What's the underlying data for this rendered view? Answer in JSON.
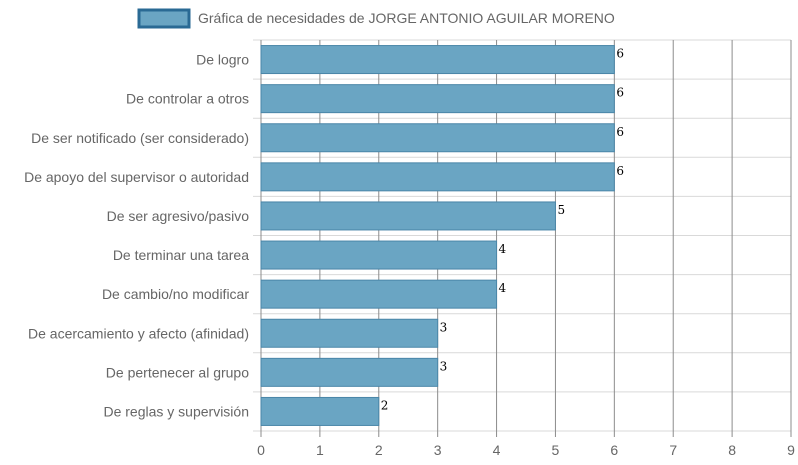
{
  "chart_data": {
    "type": "bar",
    "orientation": "horizontal",
    "legend": {
      "label": "Gráfica de necesidades de JORGE ANTONIO AGUILAR MORENO",
      "position": "top"
    },
    "categories": [
      "De logro",
      "De controlar a otros",
      "De ser notificado (ser considerado)",
      "De apoyo del supervisor o autoridad",
      "De ser agresivo/pasivo",
      "De terminar una tarea",
      "De cambio/no modificar",
      "De acercamiento y afecto (afinidad)",
      "De pertenecer al grupo",
      "De reglas y supervisión"
    ],
    "series": [
      {
        "name": "Gráfica de necesidades de JORGE ANTONIO AGUILAR MORENO",
        "values": [
          6,
          6,
          6,
          6,
          5,
          4,
          4,
          3,
          3,
          2
        ]
      }
    ],
    "xlim": [
      0,
      9
    ],
    "xticks": [
      "0",
      "1",
      "2",
      "3",
      "4",
      "5",
      "6",
      "7",
      "8",
      "9"
    ],
    "grid": true,
    "colors": {
      "bar_fill": "#6aa5c3",
      "bar_stroke": "#4a86a8",
      "legend_stroke": "#2a6a94",
      "grid": "#d9d9d9",
      "grid_vertical": "#8c8c8c"
    }
  }
}
